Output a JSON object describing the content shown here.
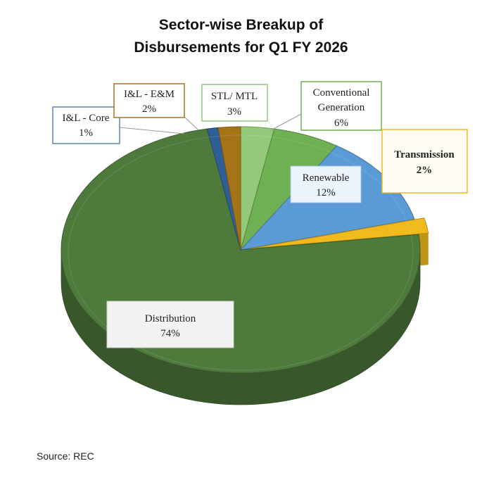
{
  "title_line1": "Sector-wise Breakup of",
  "title_line2": "Disbursements for Q1 FY 2026",
  "source": "Source: REC",
  "chart_data": {
    "type": "pie",
    "style": "3d",
    "slices": [
      {
        "name": "STL/ MTL",
        "value": 3,
        "label": "3%",
        "color": "#94c97b"
      },
      {
        "name": "Conventional Generation",
        "value": 6,
        "label": "6%",
        "color": "#6fb053"
      },
      {
        "name": "Renewable",
        "value": 12,
        "label": "12%",
        "color": "#5b9bd5"
      },
      {
        "name": "Transmission",
        "value": 2,
        "label": "2%",
        "color": "#f0b91c"
      },
      {
        "name": "Distribution",
        "value": 74,
        "label": "74%",
        "color": "#4e7a3c"
      },
      {
        "name": "I&L - Core",
        "value": 1,
        "label": "1%",
        "color": "#2e5f94"
      },
      {
        "name": "I&L - E&M",
        "value": 2,
        "label": "2%",
        "color": "#a57418"
      }
    ],
    "label_text": {
      "stl_line1": "STL/ MTL",
      "conv_line1": "Conventional",
      "conv_line2": "Generation",
      "renew_line1": "Renewable",
      "trans_line1": "Transmission",
      "dist_line1": "Distribution",
      "core_line1": "I&L - Core",
      "em_line1": "I&L - E&M"
    }
  }
}
